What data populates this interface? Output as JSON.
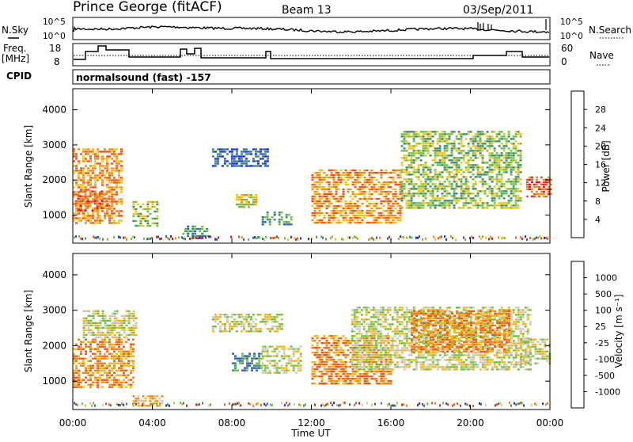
{
  "header": {
    "station": "Prince George (fitACF)",
    "beam": "Beam 13",
    "date": "03/Sep/2011"
  },
  "noise_panel": {
    "left_label": "N.Sky",
    "right_label": "N.Search",
    "left_ticks": [
      "10^5",
      "10^0"
    ],
    "right_ticks": [
      "10^5",
      "10^0"
    ]
  },
  "freq_panel": {
    "left_label_1": "Freq.",
    "left_label_2": "[MHz]",
    "left_ticks": [
      "18",
      "8"
    ],
    "right_label": "Nave",
    "right_ticks": [
      "60",
      "0"
    ]
  },
  "cpid": {
    "label": "CPID",
    "value": "normalsound (fast) -157"
  },
  "chart_data": [
    {
      "type": "heatmap",
      "panel": "power",
      "ylabel": "Slant Range [km]",
      "yticks": [
        "1000",
        "2000",
        "3000",
        "4000"
      ],
      "ylim": [
        200,
        4600
      ],
      "xlim_hours": [
        0,
        24
      ],
      "colorbar": {
        "label": "Power [dB]",
        "ticks": [
          "4",
          "8",
          "12",
          "16",
          "20",
          "24",
          "28"
        ],
        "colors": [
          "#1b2ee0",
          "#2d5fb4",
          "#3c8c6b",
          "#6fbf3c",
          "#f2c21a",
          "#f28c1a",
          "#f2541a",
          "#e01b1b"
        ]
      },
      "regions": [
        {
          "t0": 0.0,
          "t1": 2.5,
          "r0": 800,
          "r1": 2900,
          "level": 5
        },
        {
          "t0": 0.1,
          "t1": 1.8,
          "r0": 1100,
          "r1": 1700,
          "level": 6
        },
        {
          "t0": 3.0,
          "t1": 4.2,
          "r0": 700,
          "r1": 1400,
          "level": 3
        },
        {
          "t0": 5.5,
          "t1": 6.8,
          "r0": 350,
          "r1": 700,
          "level": 2
        },
        {
          "t0": 7.0,
          "t1": 9.8,
          "r0": 2400,
          "r1": 2900,
          "level": 1
        },
        {
          "t0": 8.2,
          "t1": 9.2,
          "r0": 1200,
          "r1": 1600,
          "level": 4
        },
        {
          "t0": 9.5,
          "t1": 11.0,
          "r0": 700,
          "r1": 1100,
          "level": 2
        },
        {
          "t0": 12.0,
          "t1": 16.5,
          "r0": 800,
          "r1": 2300,
          "level": 5
        },
        {
          "t0": 16.5,
          "t1": 22.5,
          "r0": 1200,
          "r1": 3400,
          "level": 3
        },
        {
          "t0": 22.8,
          "t1": 24.0,
          "r0": 1500,
          "r1": 2100,
          "level": 6
        }
      ]
    },
    {
      "type": "heatmap",
      "panel": "velocity",
      "ylabel": "Slant Range [km]",
      "yticks": [
        "1000",
        "2000",
        "3000",
        "4000"
      ],
      "ylim": [
        200,
        4600
      ],
      "xlim_hours": [
        0,
        24
      ],
      "xticks": [
        "00:00",
        "04:00",
        "08:00",
        "12:00",
        "16:00",
        "20:00",
        "00:00"
      ],
      "xlabel": "Time UT",
      "colorbar": {
        "label": "Velocity [m s⁻¹]",
        "ticks": [
          "1000",
          "500",
          "100",
          "25",
          "-25",
          "-100",
          "-500",
          "-1000"
        ],
        "colors": [
          "#1b2ee0",
          "#2d5fb4",
          "#3c8c6b",
          "#6fbf3c",
          "#c8c8c0",
          "#f2b51a",
          "#f2801a",
          "#e85a1a",
          "#e01b1b"
        ]
      },
      "regions": [
        {
          "t0": 0.0,
          "t1": 3.0,
          "r0": 800,
          "r1": 2200,
          "level": 6
        },
        {
          "t0": 0.5,
          "t1": 3.2,
          "r0": 2200,
          "r1": 3000,
          "level": 4
        },
        {
          "t0": 3.0,
          "t1": 4.5,
          "r0": 300,
          "r1": 600,
          "level": 5
        },
        {
          "t0": 7.0,
          "t1": 10.5,
          "r0": 2400,
          "r1": 2900,
          "level": 4
        },
        {
          "t0": 8.0,
          "t1": 9.5,
          "r0": 1300,
          "r1": 1800,
          "level": 2
        },
        {
          "t0": 9.5,
          "t1": 11.5,
          "r0": 1200,
          "r1": 2000,
          "level": 4
        },
        {
          "t0": 12.0,
          "t1": 16.0,
          "r0": 900,
          "r1": 2300,
          "level": 6
        },
        {
          "t0": 14.0,
          "t1": 23.0,
          "r0": 1300,
          "r1": 3100,
          "level": 4
        },
        {
          "t0": 17.0,
          "t1": 22.0,
          "r0": 1800,
          "r1": 3000,
          "level": 6
        },
        {
          "t0": 22.5,
          "t1": 24.0,
          "r0": 1500,
          "r1": 2200,
          "level": 4
        }
      ]
    }
  ]
}
